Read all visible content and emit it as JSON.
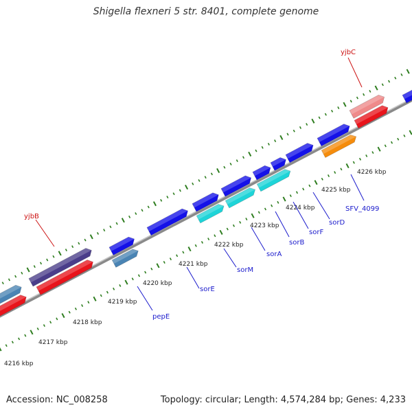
{
  "title": "Shigella flexneri 5 str. 8401, complete genome",
  "footer": {
    "accession": "Accession: NC_008258",
    "topology": "Topology: circular; Length: 4,574,284 bp; Genes: 4,233"
  },
  "colors": {
    "background": "#ffffff",
    "backbone": "#8a8a8a",
    "tick": "#2e7d1f",
    "label_gene": "#1a1acc",
    "label_red": "#cc1111",
    "scale_text": "#222222"
  },
  "scale_labels": [
    "4216 kbp",
    "4217 kbp",
    "4218 kbp",
    "4219 kbp",
    "4220 kbp",
    "4221 kbp",
    "4222 kbp",
    "4223 kbp",
    "4224 kbp",
    "4225 kbp",
    "4226 kbp"
  ],
  "features": [
    {
      "id": "f1",
      "track": "top",
      "color": "#4a3d8a",
      "label": "yjbB"
    },
    {
      "id": "f2",
      "track": "top",
      "color": "#ef8a8a",
      "label": "yjbC"
    },
    {
      "id": "f3",
      "track": "top",
      "color": "#e8141b"
    },
    {
      "id": "f4",
      "track": "top",
      "color": "#4a84b4"
    },
    {
      "id": "f5",
      "track": "top",
      "color": "#e8141b"
    },
    {
      "id": "f6",
      "track": "top",
      "color": "#e8141b"
    },
    {
      "id": "f7",
      "track": "top",
      "color": "#1411e8"
    },
    {
      "id": "g1",
      "track": "bottom",
      "color": "#1411e8"
    },
    {
      "id": "g2",
      "track": "bottom",
      "color": "#4a84b4",
      "label": "pepE"
    },
    {
      "id": "g3",
      "track": "bottom",
      "color": "#1411e8",
      "label": "sorE"
    },
    {
      "id": "g4",
      "track": "bottom",
      "color": "#1411e8"
    },
    {
      "id": "g5",
      "track": "bottom",
      "color": "#1ed4d8",
      "label": "sorM"
    },
    {
      "id": "g6",
      "track": "bottom",
      "color": "#1411e8"
    },
    {
      "id": "g7",
      "track": "bottom",
      "color": "#1ed4d8",
      "label": "sorA"
    },
    {
      "id": "g8",
      "track": "bottom",
      "color": "#1411e8"
    },
    {
      "id": "g9",
      "track": "bottom",
      "color": "#1411e8"
    },
    {
      "id": "g10",
      "track": "bottom",
      "color": "#1ed4d8",
      "label": "sorB"
    },
    {
      "id": "g11",
      "track": "bottom",
      "color": "#1411e8",
      "label": "sorF"
    },
    {
      "id": "g12",
      "track": "bottom",
      "color": "#1411e8",
      "label": "sorD"
    },
    {
      "id": "g13",
      "track": "bottom",
      "color": "#f58c0c",
      "label": "SFV_4099"
    }
  ]
}
